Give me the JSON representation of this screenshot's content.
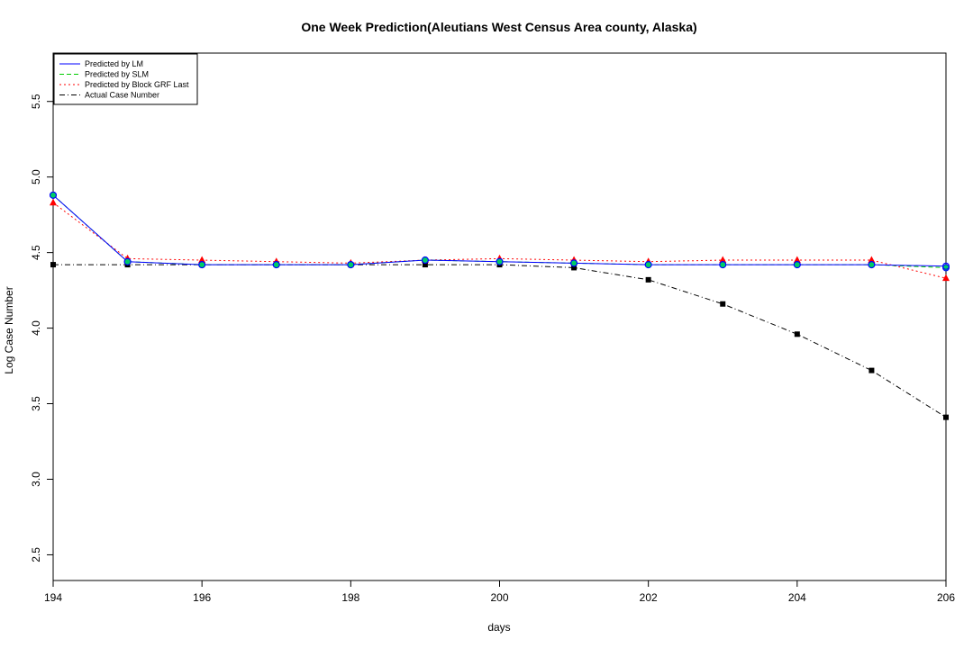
{
  "chart_data": {
    "type": "line",
    "title": "One Week Prediction(Aleutians West Census Area county, Alaska)",
    "xlabel": "days",
    "ylabel": "Log Case Number",
    "xlim": [
      194,
      206
    ],
    "ylim": [
      2.33,
      5.82
    ],
    "xticks": [
      194,
      196,
      198,
      200,
      202,
      204,
      206
    ],
    "yticks": [
      2.5,
      3.0,
      3.5,
      4.0,
      4.5,
      5.0,
      5.5
    ],
    "x": [
      194,
      195,
      196,
      197,
      198,
      199,
      200,
      201,
      202,
      203,
      204,
      205,
      206
    ],
    "legend_position": "top-left",
    "grid": false,
    "series": [
      {
        "name": "Predicted by LM",
        "color": "#0000ff",
        "line": "solid",
        "marker": "circle",
        "values": [
          4.88,
          4.44,
          4.42,
          4.42,
          4.42,
          4.45,
          4.44,
          4.43,
          4.42,
          4.42,
          4.42,
          4.42,
          4.41
        ]
      },
      {
        "name": "Predicted by SLM",
        "color": "#00cc00",
        "line": "dashed",
        "marker": "circle",
        "values": [
          4.88,
          4.44,
          4.42,
          4.42,
          4.42,
          4.45,
          4.44,
          4.43,
          4.42,
          4.42,
          4.42,
          4.42,
          4.4
        ]
      },
      {
        "name": "Predicted by Block GRF Last",
        "color": "#ff0000",
        "line": "dotted",
        "marker": "triangle",
        "values": [
          4.83,
          4.46,
          4.45,
          4.44,
          4.43,
          4.45,
          4.46,
          4.45,
          4.44,
          4.45,
          4.45,
          4.45,
          4.33
        ]
      },
      {
        "name": "Actual Case Number",
        "color": "#000000",
        "line": "dashdot",
        "marker": "square",
        "values": [
          4.42,
          4.42,
          4.42,
          4.42,
          4.42,
          4.42,
          4.42,
          4.4,
          4.32,
          4.16,
          3.96,
          3.72,
          3.41
        ]
      }
    ]
  }
}
